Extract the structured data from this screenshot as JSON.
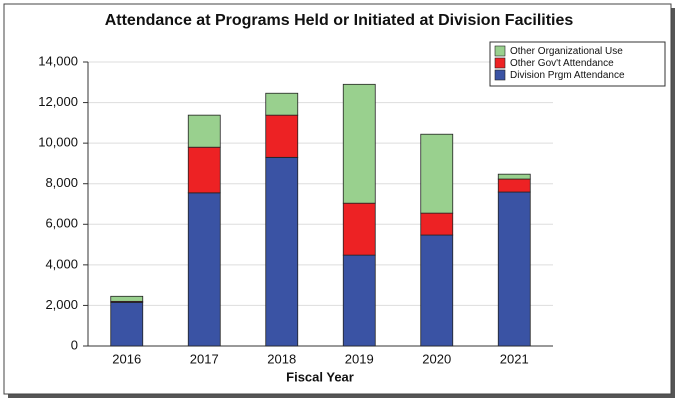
{
  "chart_data": {
    "type": "stacked_bar",
    "title": "Attendance at Programs Held or Initiated at Division Facilities",
    "x_label": "Fiscal Year",
    "categories": [
      "2016",
      "2017",
      "2018",
      "2019",
      "2020",
      "2021"
    ],
    "series": [
      {
        "name": "Division Prgm Attendance",
        "color": "#3a53a4",
        "values": [
          2150,
          7550,
          9300,
          4480,
          5470,
          7590
        ]
      },
      {
        "name": "Other Gov't Attendance",
        "color": "#ed2224",
        "values": [
          50,
          2250,
          2080,
          2560,
          1080,
          640
        ]
      },
      {
        "name": "Other Organizational Use",
        "color": "#99d08e",
        "values": [
          250,
          1580,
          1080,
          5860,
          3890,
          240
        ]
      }
    ],
    "ylim": [
      0,
      14000
    ],
    "yticks": [
      0,
      {
        "value": 2000,
        "label": "2,000"
      },
      {
        "value": 4000,
        "label": "4,000"
      },
      {
        "value": 6000,
        "label": "6,000"
      },
      {
        "value": 8000,
        "label": "8,000"
      },
      {
        "value": 10000,
        "label": "10,000"
      },
      {
        "value": 12000,
        "label": "12,000"
      },
      {
        "value": 14000,
        "label": "14,000"
      }
    ],
    "grid": true,
    "legend": "top-right"
  }
}
